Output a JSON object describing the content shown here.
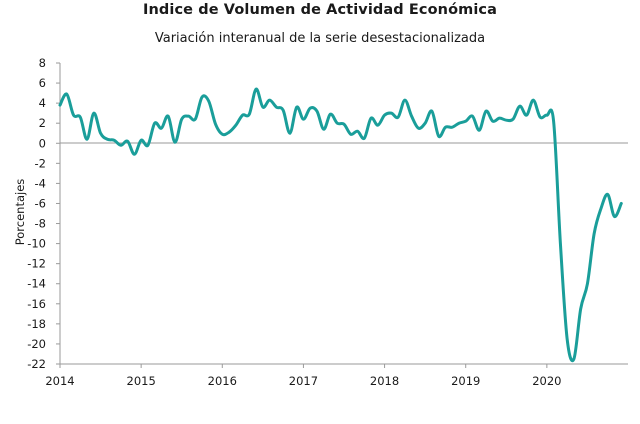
{
  "chart_data": {
    "type": "line",
    "title": "Indice de Volumen de  Actividad Económica",
    "subtitle": "Variación interanual de la serie desestacionalizada",
    "xlabel": "",
    "ylabel": "Porcentajes",
    "ylim": [
      -22,
      8
    ],
    "yticks": [
      8,
      6,
      4,
      2,
      0,
      -2,
      -4,
      -6,
      -8,
      -10,
      -12,
      -14,
      -16,
      -18,
      -20,
      -22
    ],
    "xlim": [
      2014,
      2021
    ],
    "xticks": [
      "2014",
      "2015",
      "2016",
      "2017",
      "2018",
      "2019",
      "2020"
    ],
    "grid": false,
    "line_color": "#1a9e9a",
    "series": [
      {
        "x": [
          2014.0,
          2014.083,
          2014.167,
          2014.25,
          2014.333,
          2014.417,
          2014.5,
          2014.583,
          2014.667,
          2014.75,
          2014.833,
          2014.917,
          2015.0,
          2015.083,
          2015.167,
          2015.25,
          2015.333,
          2015.417,
          2015.5,
          2015.583,
          2015.667,
          2015.75,
          2015.833,
          2015.917,
          2016.0,
          2016.083,
          2016.167,
          2016.25,
          2016.333,
          2016.417,
          2016.5,
          2016.583,
          2016.667,
          2016.75,
          2016.833,
          2016.917,
          2017.0,
          2017.083,
          2017.167,
          2017.25,
          2017.333,
          2017.417,
          2017.5,
          2017.583,
          2017.667,
          2017.75,
          2017.833,
          2017.917,
          2018.0,
          2018.083,
          2018.167,
          2018.25,
          2018.333,
          2018.417,
          2018.5,
          2018.583,
          2018.667,
          2018.75,
          2018.833,
          2018.917,
          2019.0,
          2019.083,
          2019.167,
          2019.25,
          2019.333,
          2019.417,
          2019.5,
          2019.583,
          2019.667,
          2019.75,
          2019.833,
          2019.917,
          2020.0,
          2020.083,
          2020.167,
          2020.25,
          2020.333,
          2020.417,
          2020.5,
          2020.583,
          2020.667,
          2020.75,
          2020.833,
          2020.917
        ],
        "values": [
          3.8,
          4.9,
          2.8,
          2.6,
          0.4,
          3.0,
          1.0,
          0.4,
          0.3,
          -0.2,
          0.2,
          -1.1,
          0.3,
          -0.2,
          2.0,
          1.5,
          2.7,
          0.1,
          2.4,
          2.7,
          2.4,
          4.6,
          4.2,
          1.9,
          0.9,
          1.1,
          1.8,
          2.8,
          2.9,
          5.4,
          3.6,
          4.3,
          3.6,
          3.3,
          1.0,
          3.6,
          2.4,
          3.5,
          3.2,
          1.4,
          2.9,
          2.0,
          1.9,
          0.9,
          1.2,
          0.5,
          2.5,
          1.8,
          2.8,
          3.0,
          2.6,
          4.3,
          2.7,
          1.5,
          2.0,
          3.2,
          0.7,
          1.6,
          1.6,
          2.0,
          2.2,
          2.7,
          1.3,
          3.2,
          2.2,
          2.5,
          2.3,
          2.4,
          3.7,
          2.8,
          4.3,
          2.6,
          2.8,
          2.2,
          -10.0,
          -19.5,
          -21.5,
          -16.5,
          -14.0,
          -9.0,
          -6.5,
          -5.1,
          -7.3,
          -6.0
        ]
      }
    ]
  }
}
